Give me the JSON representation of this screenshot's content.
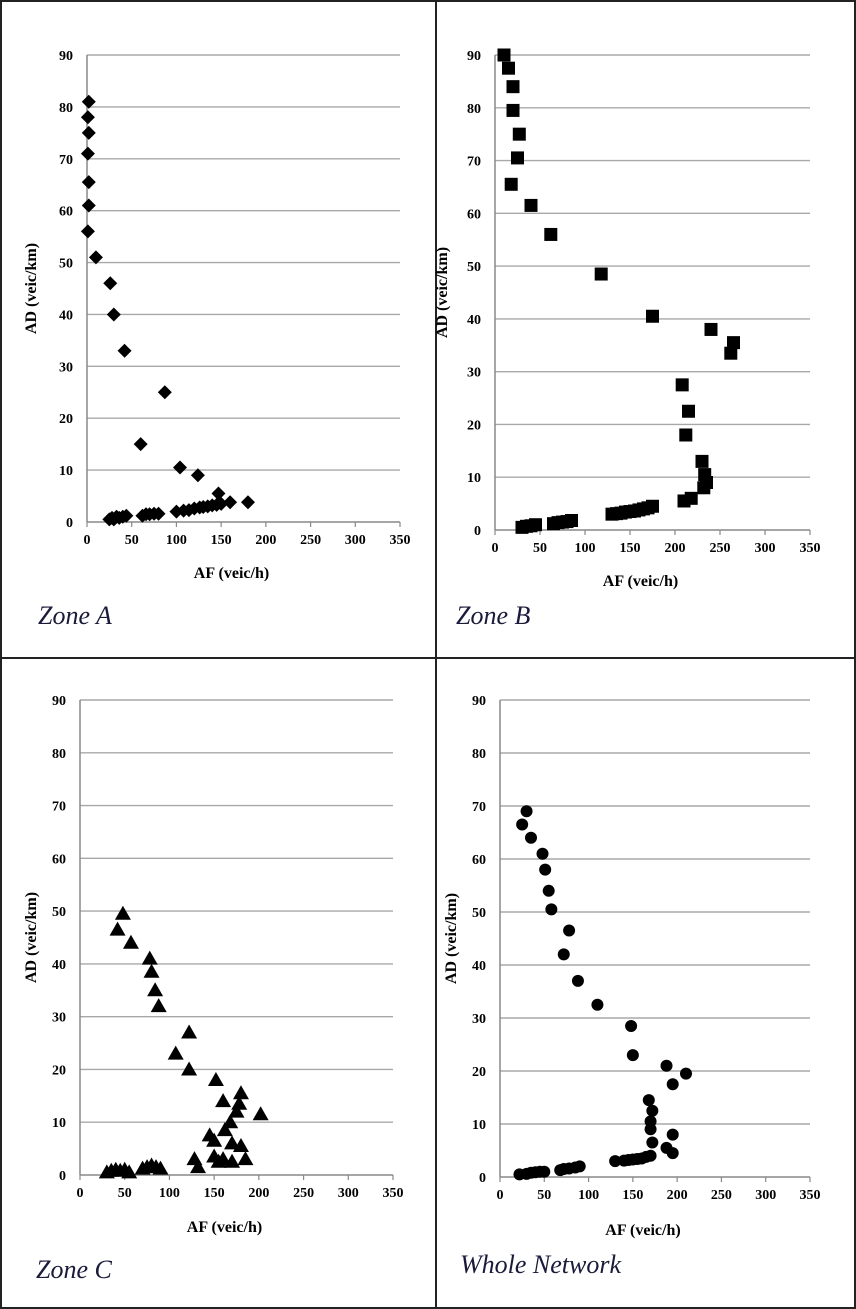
{
  "chart_data": [
    {
      "type": "scatter",
      "title": "",
      "panel_label": "Zone A",
      "xlabel": "AF (veic/h)",
      "ylabel": "AD (veic/km)",
      "xlim": [
        0,
        350
      ],
      "ylim": [
        0,
        90
      ],
      "x_ticks": [
        "0",
        "50",
        "100",
        "150",
        "200",
        "250",
        "300",
        "350"
      ],
      "y_ticks": [
        "0",
        "10",
        "20",
        "30",
        "40",
        "50",
        "60",
        "70",
        "80",
        "90"
      ],
      "grid": "horizontal",
      "marker": "diamond",
      "series": [
        {
          "x": [
            2,
            1,
            2,
            1,
            2,
            2,
            1,
            10,
            26,
            30,
            42,
            87,
            60,
            104,
            124,
            147,
            25,
            28,
            30,
            33,
            36,
            40,
            44,
            62,
            66,
            70,
            75,
            80,
            100,
            108,
            114,
            120,
            126,
            130,
            135,
            140,
            145,
            150,
            160,
            180
          ],
          "y": [
            81,
            78,
            75,
            71,
            65.5,
            61,
            56,
            51,
            46,
            40,
            33,
            25,
            15,
            10.5,
            9,
            5.5,
            0.5,
            0.8,
            0.5,
            1,
            0.8,
            1,
            1.2,
            1.2,
            1.5,
            1.5,
            1.6,
            1.6,
            2,
            2.2,
            2.3,
            2.6,
            2.8,
            2.9,
            3,
            3.2,
            3.3,
            3.5,
            3.8,
            3.8
          ]
        }
      ]
    },
    {
      "type": "scatter",
      "title": "",
      "panel_label": "Zone B",
      "xlabel": "AF (veic/h)",
      "ylabel": "AD (veic/km)",
      "xlim": [
        0,
        350
      ],
      "ylim": [
        0,
        90
      ],
      "x_ticks": [
        "0",
        "50",
        "100",
        "150",
        "200",
        "250",
        "300",
        "350"
      ],
      "y_ticks": [
        "0",
        "10",
        "20",
        "30",
        "40",
        "50",
        "60",
        "70",
        "80",
        "90"
      ],
      "grid": "horizontal",
      "marker": "square",
      "series": [
        {
          "x": [
            10,
            15,
            20,
            20,
            27,
            25,
            18,
            40,
            62,
            118,
            175,
            240,
            265,
            262,
            208,
            215,
            212,
            230,
            233,
            235,
            232,
            210,
            218,
            30,
            35,
            40,
            45,
            65,
            70,
            75,
            80,
            85,
            130,
            135,
            140,
            145,
            150,
            155,
            160,
            165,
            170,
            175
          ],
          "y": [
            90,
            87.5,
            84,
            79.5,
            75,
            70.5,
            65.5,
            61.5,
            56,
            48.5,
            40.5,
            38,
            35.5,
            33.5,
            27.5,
            22.5,
            18,
            13,
            10.5,
            9,
            8,
            5.5,
            6,
            0.5,
            0.7,
            0.8,
            1,
            1.2,
            1.4,
            1.5,
            1.6,
            1.8,
            3,
            3.1,
            3.2,
            3.4,
            3.5,
            3.6,
            3.8,
            4,
            4.2,
            4.5
          ]
        }
      ]
    },
    {
      "type": "scatter",
      "title": "",
      "panel_label": "Zone C",
      "xlabel": "AF (veic/h)",
      "ylabel": "AD (veic/km)",
      "xlim": [
        0,
        350
      ],
      "ylim": [
        0,
        90
      ],
      "x_ticks": [
        "0",
        "50",
        "100",
        "150",
        "200",
        "250",
        "300",
        "350"
      ],
      "y_ticks": [
        "0",
        "10",
        "20",
        "30",
        "40",
        "50",
        "60",
        "70",
        "80",
        "90"
      ],
      "grid": "horizontal",
      "marker": "triangle",
      "series": [
        {
          "x": [
            48,
            42,
            57,
            78,
            80,
            84,
            88,
            122,
            107,
            122,
            152,
            180,
            160,
            178,
            175,
            202,
            168,
            145,
            150,
            162,
            170,
            180,
            128,
            132,
            150,
            155,
            160,
            170,
            185,
            30,
            35,
            40,
            45,
            50,
            55,
            70,
            75,
            80,
            85,
            90
          ],
          "y": [
            49.5,
            46.5,
            44,
            41,
            38.5,
            35,
            32,
            27,
            23,
            20,
            18,
            15.5,
            14,
            13.5,
            12,
            11.5,
            10,
            7.5,
            6.5,
            8.5,
            6,
            5.5,
            3,
            1.5,
            3.5,
            2.5,
            3,
            2.5,
            3,
            0.5,
            0.8,
            1,
            0.8,
            1,
            0.5,
            1.2,
            1.5,
            1.8,
            1.5,
            1.2
          ]
        }
      ]
    },
    {
      "type": "scatter",
      "title": "",
      "panel_label": "Whole Network",
      "xlabel": "AF (veic/h)",
      "ylabel": "AD (veic/km)",
      "xlim": [
        0,
        350
      ],
      "ylim": [
        0,
        90
      ],
      "x_ticks": [
        "0",
        "50",
        "100",
        "150",
        "200",
        "250",
        "300",
        "350"
      ],
      "y_ticks": [
        "0",
        "10",
        "20",
        "30",
        "40",
        "50",
        "60",
        "70",
        "80",
        "90"
      ],
      "grid": "horizontal",
      "marker": "circle",
      "series": [
        {
          "x": [
            30,
            25,
            35,
            48,
            51,
            55,
            58,
            78,
            72,
            88,
            110,
            148,
            150,
            188,
            210,
            195,
            168,
            172,
            170,
            170,
            172,
            195,
            188,
            195,
            22,
            30,
            35,
            40,
            45,
            50,
            68,
            72,
            78,
            85,
            90,
            130,
            140,
            145,
            150,
            155,
            160,
            165,
            170
          ],
          "y": [
            69,
            66.5,
            64,
            61,
            58,
            54,
            50.5,
            46.5,
            42,
            37,
            32.5,
            28.5,
            23,
            21,
            19.5,
            17.5,
            14.5,
            12.5,
            10.5,
            9,
            6.5,
            8,
            5.5,
            4.5,
            0.5,
            0.6,
            0.8,
            0.9,
            1,
            1,
            1.3,
            1.5,
            1.6,
            1.8,
            2,
            3,
            3.1,
            3.2,
            3.3,
            3.4,
            3.5,
            3.8,
            4
          ]
        }
      ]
    }
  ]
}
